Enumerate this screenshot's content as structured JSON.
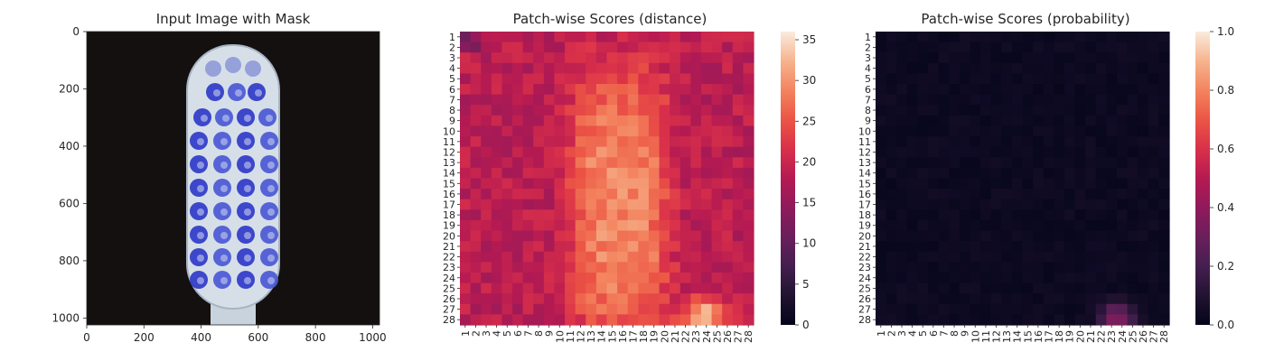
{
  "chart_data": [
    {
      "type": "image",
      "title": "Input Image with Mask",
      "x_ticks": [
        "0",
        "200",
        "400",
        "600",
        "800",
        "1000"
      ],
      "y_ticks": [
        "0",
        "200",
        "400",
        "600",
        "800",
        "1000"
      ],
      "xlim": [
        0,
        1024
      ],
      "ylim": [
        1024,
        0
      ],
      "image_description_colors": {
        "background": "#141010",
        "brush": "#d7e0ea",
        "mask": "#2f39c8"
      }
    },
    {
      "type": "heatmap",
      "title": "Patch-wise Scores (distance)",
      "x_categories": [
        "1",
        "2",
        "3",
        "4",
        "5",
        "6",
        "7",
        "8",
        "9",
        "10",
        "11",
        "12",
        "13",
        "14",
        "15",
        "16",
        "17",
        "18",
        "19",
        "20",
        "21",
        "22",
        "23",
        "24",
        "25",
        "26",
        "27",
        "28"
      ],
      "y_categories": [
        "1",
        "2",
        "3",
        "4",
        "5",
        "6",
        "7",
        "8",
        "9",
        "10",
        "11",
        "12",
        "13",
        "14",
        "15",
        "16",
        "17",
        "18",
        "19",
        "20",
        "21",
        "22",
        "23",
        "24",
        "25",
        "26",
        "27",
        "28"
      ],
      "colorbar_ticks": [
        "0",
        "5",
        "10",
        "15",
        "20",
        "25",
        "30",
        "35"
      ],
      "vmin": 0,
      "vmax": 36,
      "colormap": "rocket",
      "values_note": "estimated: background ~17-21, brush region ~24-31, bright spot at cols 22-24 rows 26-28 ~34-36"
    },
    {
      "type": "heatmap",
      "title": "Patch-wise Scores (probability)",
      "x_categories": [
        "1",
        "2",
        "3",
        "4",
        "5",
        "6",
        "7",
        "8",
        "9",
        "10",
        "11",
        "12",
        "13",
        "14",
        "15",
        "16",
        "17",
        "18",
        "19",
        "20",
        "21",
        "22",
        "23",
        "24",
        "25",
        "26",
        "27",
        "28"
      ],
      "y_categories": [
        "1",
        "2",
        "3",
        "4",
        "5",
        "6",
        "7",
        "8",
        "9",
        "10",
        "11",
        "12",
        "13",
        "14",
        "15",
        "16",
        "17",
        "18",
        "19",
        "20",
        "21",
        "22",
        "23",
        "24",
        "25",
        "26",
        "27",
        "28"
      ],
      "colorbar_ticks": [
        "0.0",
        "0.2",
        "0.4",
        "0.6",
        "0.8",
        "1.0"
      ],
      "vmin": 0,
      "vmax": 1,
      "colormap": "rocket",
      "values_note": "estimated: near 0 everywhere except cols 21-24 rows 25-28 up to ~0.35"
    }
  ]
}
